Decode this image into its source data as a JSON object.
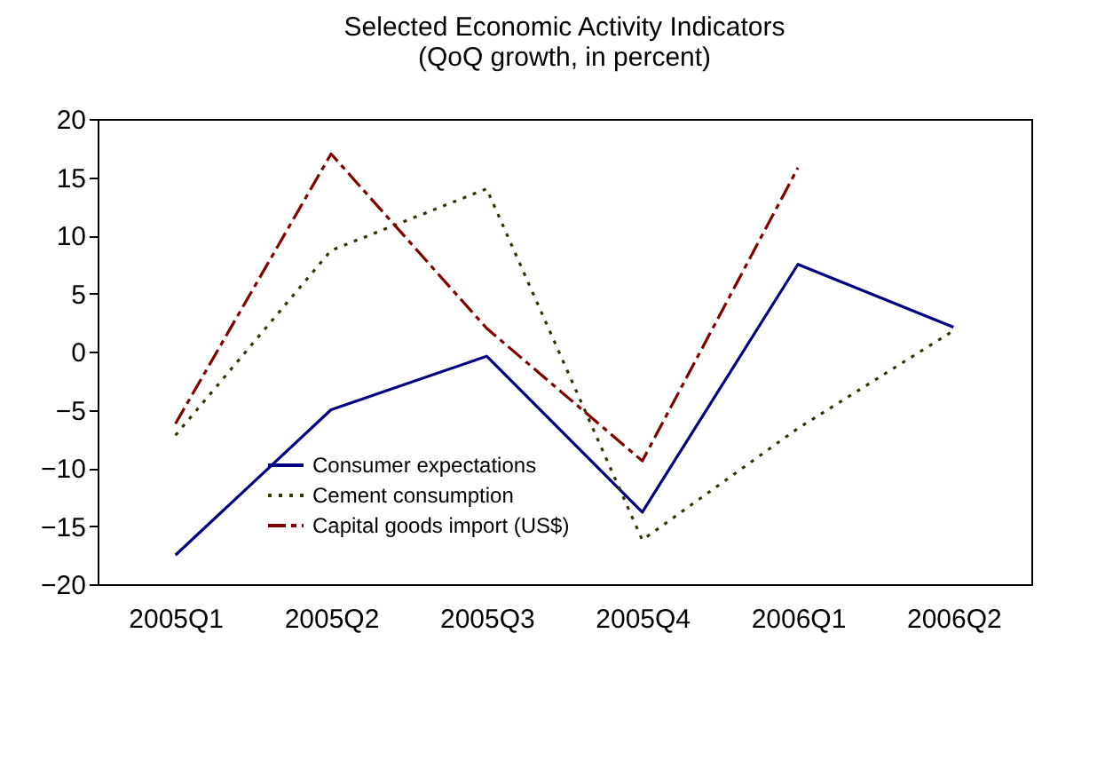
{
  "chart_data": {
    "type": "line",
    "title": "Selected Economic Activity Indicators",
    "subtitle": "(QoQ growth, in percent)",
    "categories": [
      "2005Q1",
      "2005Q2",
      "2005Q3",
      "2005Q4",
      "2006Q1",
      "2006Q2"
    ],
    "series": [
      {
        "name": "Consumer expectations",
        "color": "#000080",
        "line_style": "solid",
        "values": [
          -17.5,
          -5,
          -0.4,
          -13.8,
          7.5,
          2.1
        ]
      },
      {
        "name": "Cement consumption",
        "color": "#333300",
        "line_style": "dotted",
        "values": [
          -7.2,
          8.7,
          14,
          -16.2,
          -6.6,
          1.8
        ]
      },
      {
        "name": "Capital goods import (US$)",
        "color": "#800000",
        "line_style": "dashed",
        "values": [
          -6.2,
          17,
          2,
          -9.4,
          15.8,
          null
        ]
      }
    ],
    "ylim": [
      -20,
      20
    ],
    "yticks": [
      -20,
      -15,
      -10,
      -5,
      0,
      5,
      10,
      15,
      20
    ],
    "grid": false,
    "legend": "bottom left",
    "marker": "none"
  }
}
